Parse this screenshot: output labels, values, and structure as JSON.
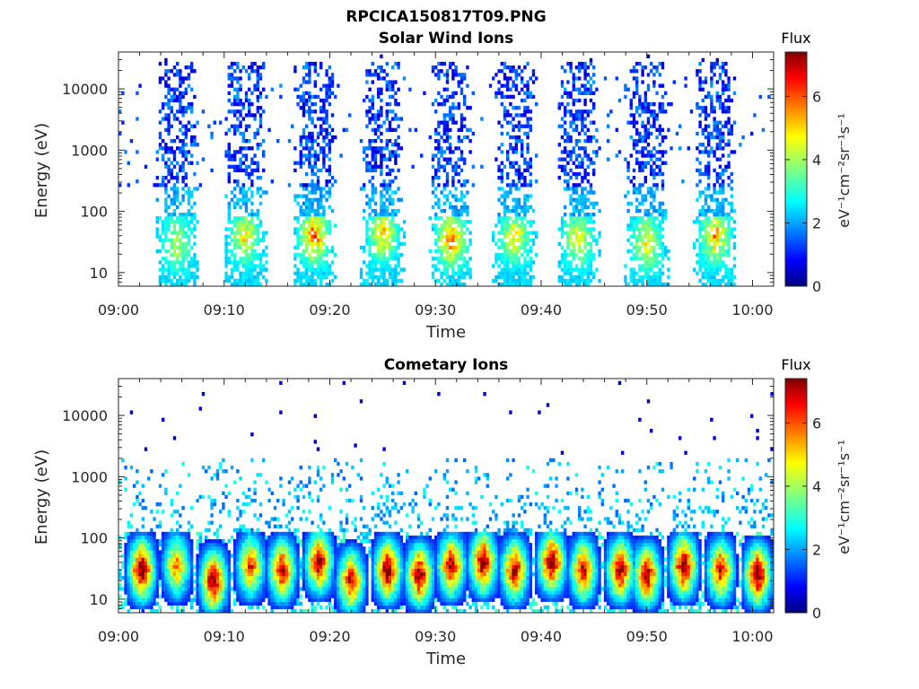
{
  "figure_title": "RPCICA150817T09.PNG",
  "chart_data": [
    {
      "type": "heatmap",
      "title": "Solar Wind Ions",
      "xlabel": "Time",
      "ylabel": "Energy (eV)",
      "x_ticks": [
        "09:00",
        "09:10",
        "09:20",
        "09:30",
        "09:40",
        "09:50",
        "10:00"
      ],
      "x_range_minutes": [
        0,
        62
      ],
      "y_scale": "log",
      "y_ticks": [
        {
          "value": 10,
          "label": "10"
        },
        {
          "value": 100,
          "label": "100"
        },
        {
          "value": 1000,
          "label": "1000"
        },
        {
          "value": 10000,
          "label": "10000"
        }
      ],
      "y_range_eV": [
        6,
        40000
      ],
      "colorbar": {
        "title": "Flux",
        "label": "eV⁻¹cm⁻²sr⁻¹s⁻¹",
        "ticks": [
          "0",
          "2",
          "4",
          "6"
        ],
        "range": [
          0,
          7.4
        ],
        "colormap": "jet"
      },
      "description": "Periodic bursts of solar wind ion flux",
      "bursts": [
        {
          "center_minute": 5.5,
          "width_minutes": 3.5,
          "peak_energy_eV": 30,
          "peak_flux": 4.2
        },
        {
          "center_minute": 12.0,
          "width_minutes": 3.5,
          "peak_energy_eV": 40,
          "peak_flux": 5.0
        },
        {
          "center_minute": 18.5,
          "width_minutes": 3.5,
          "peak_energy_eV": 40,
          "peak_flux": 6.2
        },
        {
          "center_minute": 25.0,
          "width_minutes": 3.5,
          "peak_energy_eV": 45,
          "peak_flux": 5.3
        },
        {
          "center_minute": 31.5,
          "width_minutes": 3.5,
          "peak_energy_eV": 35,
          "peak_flux": 5.8
        },
        {
          "center_minute": 37.5,
          "width_minutes": 3.5,
          "peak_energy_eV": 40,
          "peak_flux": 5.0
        },
        {
          "center_minute": 43.5,
          "width_minutes": 3.5,
          "peak_energy_eV": 35,
          "peak_flux": 4.8
        },
        {
          "center_minute": 50.0,
          "width_minutes": 3.5,
          "peak_energy_eV": 30,
          "peak_flux": 4.8
        },
        {
          "center_minute": 56.5,
          "width_minutes": 3.5,
          "peak_energy_eV": 40,
          "peak_flux": 5.5
        }
      ]
    },
    {
      "type": "heatmap",
      "title": "Cometary Ions",
      "xlabel": "Time",
      "ylabel": "Energy (eV)",
      "x_ticks": [
        "09:00",
        "09:10",
        "09:20",
        "09:30",
        "09:40",
        "09:50",
        "10:00"
      ],
      "x_range_minutes": [
        0,
        62
      ],
      "y_scale": "log",
      "y_ticks": [
        {
          "value": 10,
          "label": "10"
        },
        {
          "value": 100,
          "label": "100"
        },
        {
          "value": 1000,
          "label": "1000"
        },
        {
          "value": 10000,
          "label": "10000"
        }
      ],
      "y_range_eV": [
        6,
        40000
      ],
      "colorbar": {
        "title": "Flux",
        "label": "eV⁻¹cm⁻²sr⁻¹s⁻¹",
        "ticks": [
          "0",
          "2",
          "4",
          "6"
        ],
        "range": [
          0,
          7.4
        ],
        "colormap": "jet"
      },
      "description": "Intense low-energy cometary ion flux",
      "bursts": [
        {
          "center_minute": 2.2,
          "peak_energy_eV": 30,
          "peak_flux": 7.3
        },
        {
          "center_minute": 5.5,
          "peak_energy_eV": 35,
          "peak_flux": 5.5
        },
        {
          "center_minute": 9.0,
          "peak_energy_eV": 20,
          "peak_flux": 7.3
        },
        {
          "center_minute": 12.5,
          "peak_energy_eV": 35,
          "peak_flux": 6.0
        },
        {
          "center_minute": 15.5,
          "peak_energy_eV": 30,
          "peak_flux": 6.8
        },
        {
          "center_minute": 19.0,
          "peak_energy_eV": 40,
          "peak_flux": 7.0
        },
        {
          "center_minute": 22.0,
          "peak_energy_eV": 20,
          "peak_flux": 6.5
        },
        {
          "center_minute": 25.5,
          "peak_energy_eV": 30,
          "peak_flux": 7.3
        },
        {
          "center_minute": 28.5,
          "peak_energy_eV": 25,
          "peak_flux": 7.2
        },
        {
          "center_minute": 31.5,
          "peak_energy_eV": 35,
          "peak_flux": 6.8
        },
        {
          "center_minute": 34.5,
          "peak_energy_eV": 40,
          "peak_flux": 7.4
        },
        {
          "center_minute": 37.5,
          "peak_energy_eV": 30,
          "peak_flux": 6.8
        },
        {
          "center_minute": 41.0,
          "peak_energy_eV": 40,
          "peak_flux": 7.4
        },
        {
          "center_minute": 44.0,
          "peak_energy_eV": 30,
          "peak_flux": 6.5
        },
        {
          "center_minute": 47.5,
          "peak_energy_eV": 30,
          "peak_flux": 7.0
        },
        {
          "center_minute": 50.0,
          "peak_energy_eV": 25,
          "peak_flux": 6.8
        },
        {
          "center_minute": 53.5,
          "peak_energy_eV": 35,
          "peak_flux": 7.4
        },
        {
          "center_minute": 57.0,
          "peak_energy_eV": 30,
          "peak_flux": 6.5
        },
        {
          "center_minute": 60.5,
          "peak_energy_eV": 25,
          "peak_flux": 7.4
        }
      ]
    }
  ]
}
